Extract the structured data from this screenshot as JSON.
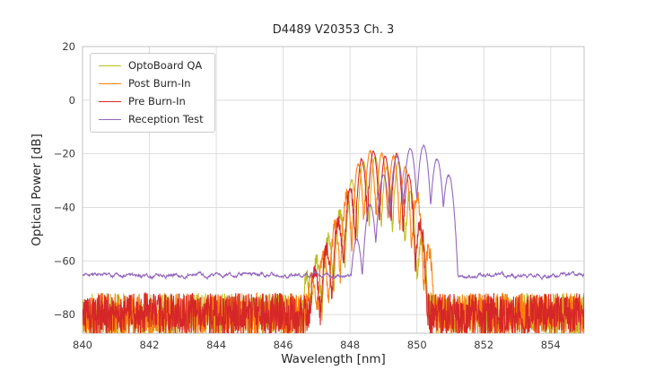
{
  "chart_data": {
    "type": "line",
    "title": "D4489 V20353 Ch. 3",
    "xlabel": "Wavelength [nm]",
    "ylabel": "Optical Power [dB]",
    "xlim": [
      840,
      855
    ],
    "ylim": [
      -87,
      20
    ],
    "xticks": [
      840,
      842,
      844,
      846,
      848,
      850,
      852,
      854
    ],
    "yticks": [
      20,
      0,
      -20,
      -40,
      -60,
      -80
    ],
    "grid": true,
    "grid_color": "#dddddd",
    "axes_border_color": "#cccccc",
    "text_color": "#3b3b3b",
    "legend_position": "upper-left",
    "sample_step_nm": 0.01,
    "mode_width_nm": 0.035,
    "series": [
      {
        "name": "OptoBoard QA",
        "color": "#bcbd22",
        "noise_floor_db": -80,
        "noise_amplitude_db": 8,
        "noise_type": "spiky",
        "seed": 11,
        "modes": [
          [
            846.7,
            -66
          ],
          [
            847.0,
            -60
          ],
          [
            847.35,
            -52
          ],
          [
            847.7,
            -42
          ],
          [
            848.05,
            -30
          ],
          [
            848.4,
            -23
          ],
          [
            848.75,
            -21
          ],
          [
            849.1,
            -25
          ],
          [
            849.45,
            -23
          ],
          [
            849.8,
            -34
          ],
          [
            850.15,
            -52
          ]
        ]
      },
      {
        "name": "Post Burn-In",
        "color": "#ff7f0e",
        "noise_floor_db": -80,
        "noise_amplitude_db": 8,
        "noise_type": "spiky",
        "seed": 22,
        "modes": [
          [
            846.85,
            -64
          ],
          [
            847.2,
            -57
          ],
          [
            847.55,
            -47
          ],
          [
            847.9,
            -36
          ],
          [
            848.25,
            -24
          ],
          [
            848.6,
            -19
          ],
          [
            848.95,
            -20
          ],
          [
            849.3,
            -21
          ],
          [
            849.65,
            -25
          ],
          [
            850.0,
            -36
          ],
          [
            850.35,
            -56
          ]
        ]
      },
      {
        "name": "Pre Burn-In",
        "color": "#d62728",
        "noise_floor_db": -80,
        "noise_amplitude_db": 8,
        "noise_type": "spiky",
        "seed": 33,
        "modes": [
          [
            846.95,
            -63
          ],
          [
            847.3,
            -55
          ],
          [
            847.65,
            -45
          ],
          [
            848.0,
            -33
          ],
          [
            848.35,
            -22
          ],
          [
            848.7,
            -19
          ],
          [
            849.05,
            -21
          ],
          [
            849.4,
            -20
          ],
          [
            849.75,
            -28
          ],
          [
            850.1,
            -46
          ]
        ]
      },
      {
        "name": "Reception Test",
        "color": "#9467bd",
        "noise_floor_db": -65.3,
        "noise_amplitude_db": 0.8,
        "noise_type": "smooth",
        "seed": 44,
        "mode_width_nm": 0.045,
        "modes": [
          [
            848.2,
            -52
          ],
          [
            848.6,
            -39
          ],
          [
            849.0,
            -28
          ],
          [
            849.4,
            -21
          ],
          [
            849.8,
            -18
          ],
          [
            850.2,
            -17
          ],
          [
            850.6,
            -22
          ],
          [
            850.95,
            -28
          ]
        ]
      }
    ]
  }
}
